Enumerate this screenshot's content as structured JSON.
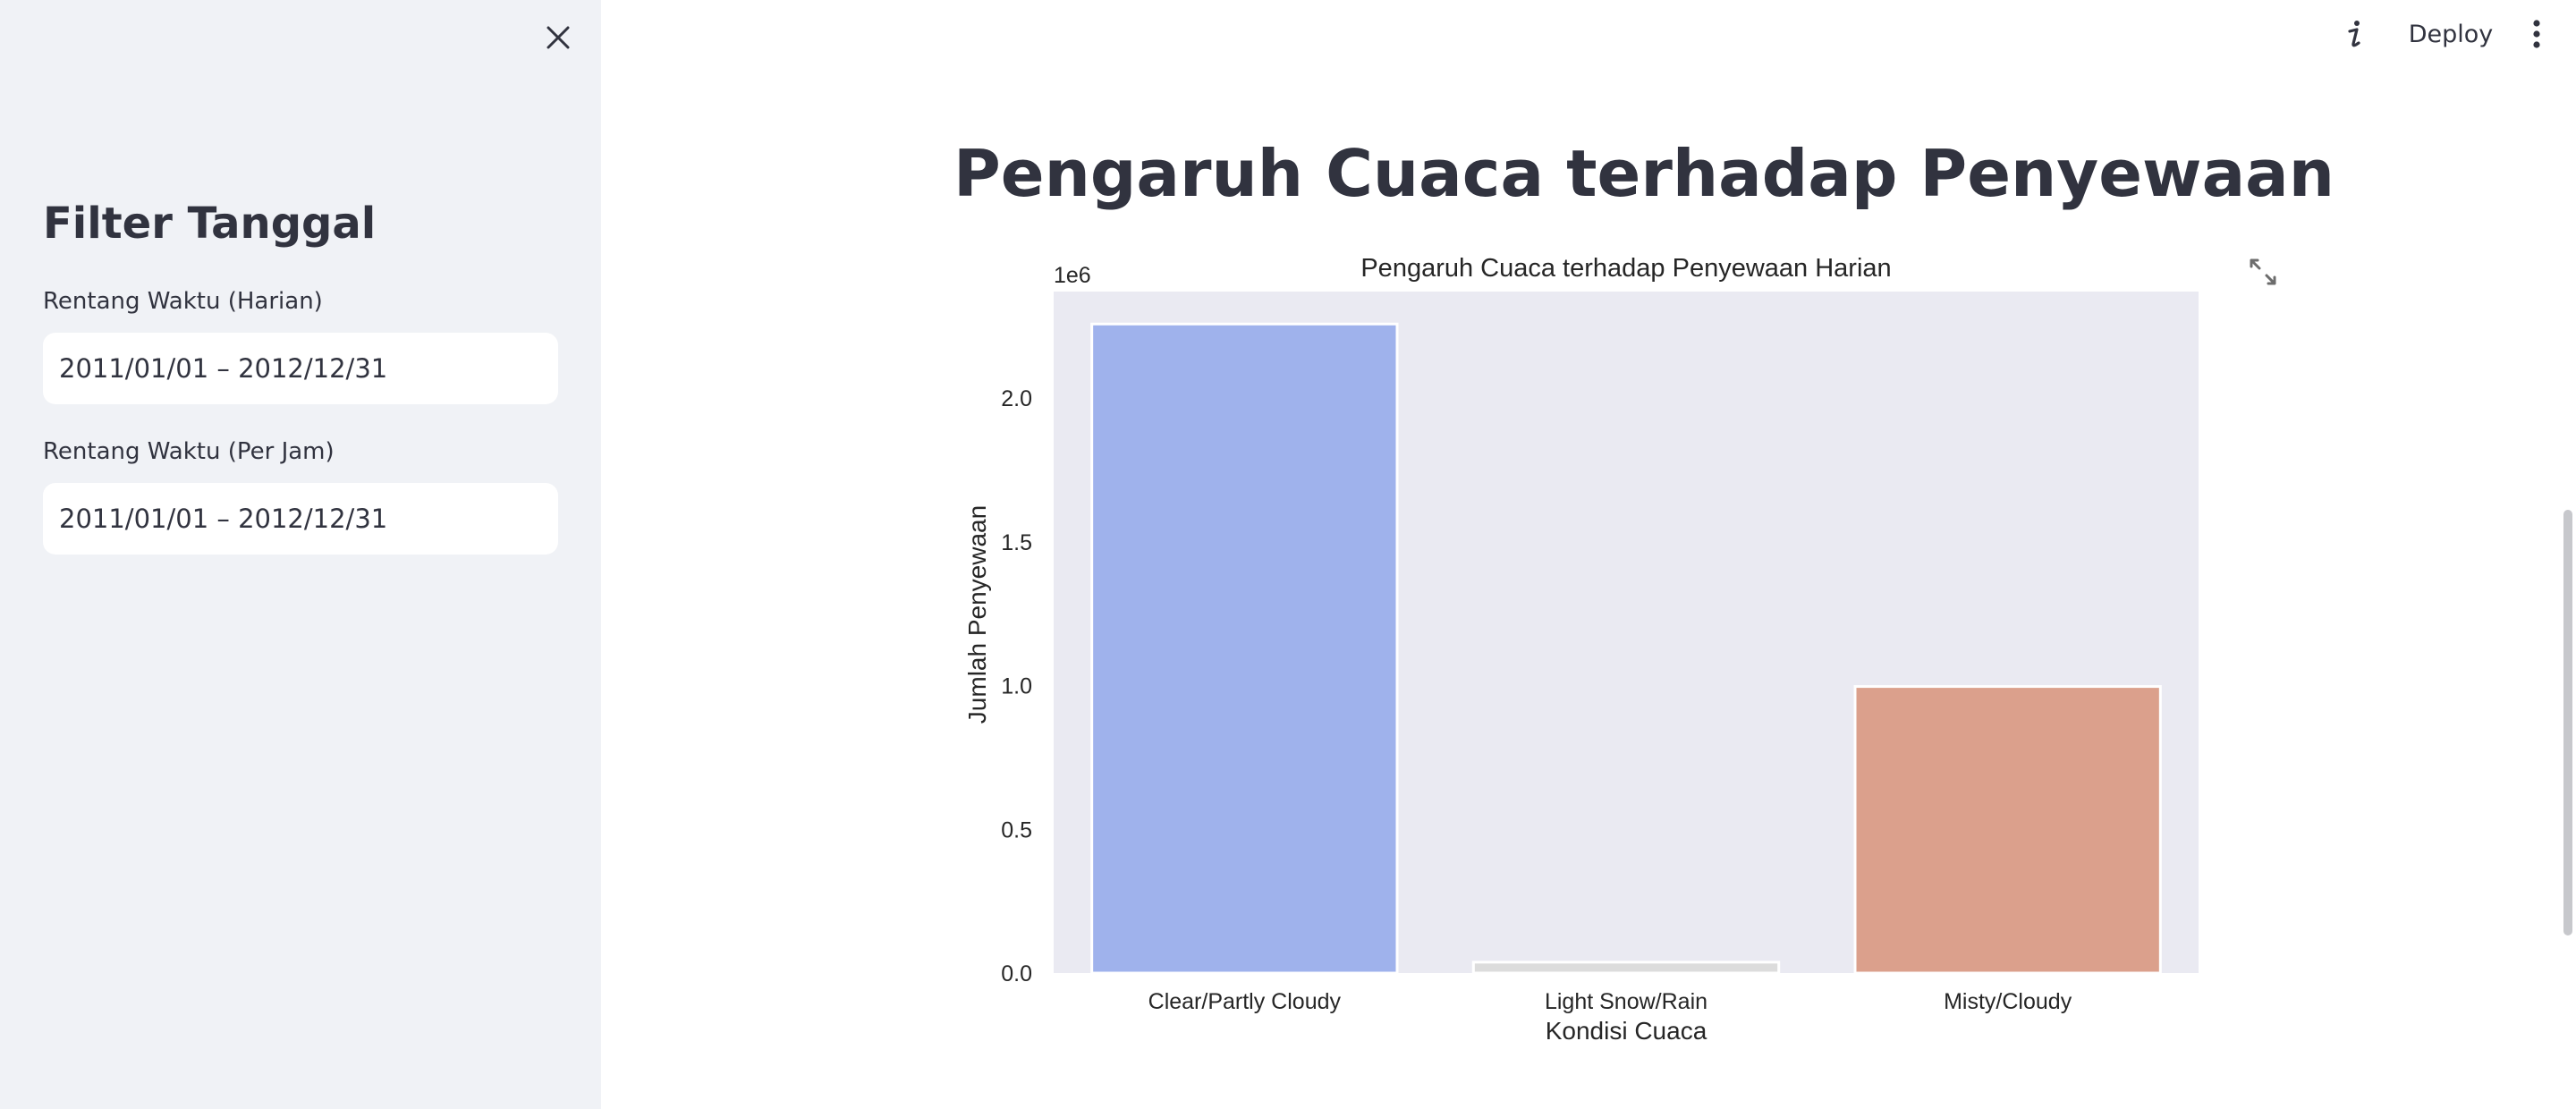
{
  "sidebar": {
    "heading": "Filter Tanggal",
    "fields": [
      {
        "label": "Rentang Waktu (Harian)",
        "value": "2011/01/01 – 2012/12/31"
      },
      {
        "label": "Rentang Waktu (Per Jam)",
        "value": "2011/01/01 – 2012/12/31"
      }
    ]
  },
  "toolbar": {
    "deploy_label": "Deploy"
  },
  "main": {
    "title": "Pengaruh Cuaca terhadap Penyewaan"
  },
  "chart_data": {
    "type": "bar",
    "title": "Pengaruh Cuaca terhadap Penyewaan Harian",
    "xlabel": "Kondisi Cuaca",
    "ylabel": "Jumlah Penyewaan",
    "offset_label": "1e6",
    "categories": [
      "Clear/Partly Cloudy",
      "Light Snow/Rain",
      "Misty/Cloudy"
    ],
    "values": [
      2257952,
      37869,
      996858
    ],
    "colors": [
      "#9fb2ec",
      "#dcdcdc",
      "#dba08c"
    ],
    "ylim": [
      0,
      2370849
    ],
    "yticks": [
      0.0,
      0.5,
      1.0,
      1.5,
      2.0
    ],
    "ytick_labels": [
      "0.0",
      "0.5",
      "1.0",
      "1.5",
      "2.0"
    ],
    "grid": false,
    "background": "#eaeaf2"
  },
  "icons": {
    "close": "close-icon",
    "info": "info-icon",
    "menu": "kebab-menu-icon",
    "expand": "fullscreen-icon"
  }
}
